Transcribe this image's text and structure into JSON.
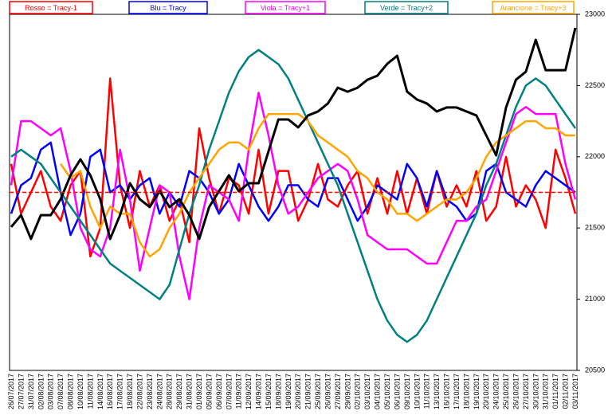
{
  "chart_data": {
    "type": "line",
    "categories": [
      "26/07/2017",
      "27/07/2017",
      "31/07/2017",
      "02/08/2017",
      "03/08/2017",
      "07/08/2017",
      "08/08/2017",
      "10/08/2017",
      "11/08/2017",
      "14/08/2017",
      "16/08/2017",
      "17/08/2017",
      "18/08/2017",
      "22/08/2017",
      "23/08/2017",
      "24/08/2017",
      "28/08/2017",
      "29/08/2017",
      "31/08/2017",
      "01/09/2017",
      "05/09/2017",
      "06/09/2017",
      "07/09/2017",
      "11/09/2017",
      "12/09/2017",
      "14/09/2017",
      "15/09/2017",
      "18/09/2017",
      "19/09/2017",
      "20/09/2017",
      "21/09/2017",
      "25/09/2017",
      "26/09/2017",
      "27/09/2017",
      "29/09/2017",
      "02/10/2017",
      "03/10/2017",
      "04/10/2017",
      "05/10/2017",
      "06/10/2017",
      "09/10/2017",
      "10/10/2017",
      "11/10/2017",
      "13/10/2017",
      "16/10/2017",
      "17/10/2017",
      "18/10/2017",
      "19/10/2017",
      "20/10/2017",
      "24/10/2017",
      "25/10/2017",
      "26/10/2017",
      "27/10/2017",
      "30/10/2017",
      "31/10/2017",
      "01/11/2017",
      "02/11/2017",
      "03/11/2017"
    ],
    "series": [
      {
        "name": "Rosso = Tracy-1",
        "color": "#ff0000",
        "values": [
          21950,
          21600,
          21750,
          21900,
          21650,
          21550,
          21800,
          21900,
          21300,
          21500,
          22550,
          21800,
          21500,
          21900,
          21650,
          21800,
          21550,
          21700,
          21400,
          22200,
          21850,
          21600,
          21850,
          21800,
          21600,
          22050,
          21600,
          21900,
          21900,
          21550,
          21700,
          21950,
          21700,
          21650,
          21800,
          21900,
          21600,
          21850,
          21600,
          21900,
          21600,
          21850,
          21600,
          21900,
          21650,
          21800,
          21650,
          21900,
          21550,
          21650,
          22000,
          21650,
          21800,
          21700,
          21500,
          22050,
          21850,
          21600
        ]
      },
      {
        "name": "Blu = Tracy",
        "color": "#0000ff",
        "values": [
          21600,
          21800,
          21850,
          22050,
          22100,
          21750,
          21450,
          21600,
          22000,
          22050,
          21750,
          21800,
          21700,
          21800,
          21850,
          21600,
          21750,
          21650,
          21900,
          21850,
          21750,
          21600,
          21700,
          21950,
          21800,
          21650,
          21550,
          21650,
          21800,
          21800,
          21700,
          21650,
          21850,
          21850,
          21700,
          21550,
          21650,
          21800,
          21750,
          21700,
          21950,
          21850,
          21650,
          21900,
          21700,
          21650,
          21550,
          21600,
          21900,
          21950,
          21750,
          21700,
          21650,
          21800,
          21900,
          21850,
          21800,
          21750
        ]
      },
      {
        "name": "Viola = Tracy+1",
        "color": "#ff00ff",
        "values": [
          21800,
          22250,
          22250,
          22200,
          22150,
          22200,
          21900,
          21500,
          21350,
          21300,
          21500,
          22050,
          21700,
          21200,
          21500,
          21800,
          21750,
          21300,
          21000,
          21500,
          21800,
          21750,
          21700,
          21550,
          22050,
          22450,
          22150,
          21800,
          21600,
          21650,
          21750,
          21850,
          21900,
          21950,
          21900,
          21700,
          21450,
          21400,
          21350,
          21350,
          21350,
          21300,
          21250,
          21250,
          21400,
          21550,
          21550,
          21650,
          21700,
          21900,
          22100,
          22300,
          22350,
          22300,
          22300,
          22300,
          21950,
          21700
        ]
      },
      {
        "name": "Verde = Tracy+2",
        "color": "#008080",
        "values": [
          22000,
          22050,
          22000,
          21950,
          21850,
          21750,
          21650,
          21550,
          21450,
          21350,
          21250,
          21200,
          21150,
          21100,
          21050,
          21000,
          21100,
          21350,
          21600,
          21800,
          22050,
          22250,
          22450,
          22600,
          22700,
          22750,
          22700,
          22650,
          22550,
          22400,
          22250,
          22100,
          21950,
          21800,
          21600,
          21400,
          21200,
          21000,
          20850,
          20750,
          20700,
          20750,
          20850,
          21000,
          21150,
          21300,
          21450,
          21600,
          21800,
          21950,
          22150,
          22350,
          22500,
          22550,
          22500,
          22400,
          22300,
          22200
        ]
      },
      {
        "name": "Arancione = Tracy+3",
        "color": "#ffa500",
        "values": [
          null,
          null,
          null,
          null,
          null,
          21950,
          21850,
          21900,
          21650,
          21500,
          21650,
          21600,
          21600,
          21400,
          21300,
          21350,
          21500,
          21600,
          21750,
          21850,
          21950,
          22050,
          22100,
          22100,
          22050,
          22200,
          22300,
          22300,
          22300,
          22300,
          22250,
          22150,
          22100,
          22050,
          22000,
          21900,
          21850,
          21750,
          21700,
          21600,
          21600,
          21550,
          21600,
          21650,
          21700,
          21700,
          21750,
          21850,
          22000,
          22100,
          22150,
          22200,
          22250,
          22250,
          22200,
          22200,
          22150,
          22150
        ]
      },
      {
        "color": "#000000",
        "values": [
          21507,
          21590,
          21423,
          21590,
          21590,
          21702,
          21870,
          21982,
          21870,
          21702,
          21423,
          21590,
          21814,
          21702,
          21647,
          21758,
          21647,
          21702,
          21590,
          21423,
          21647,
          21758,
          21870,
          21758,
          21814,
          21814,
          22038,
          22262,
          22262,
          22206,
          22290,
          22318,
          22374,
          22485,
          22457,
          22485,
          22541,
          22569,
          22653,
          22709,
          22457,
          22402,
          22374,
          22318,
          22346,
          22346,
          22318,
          22290,
          22150,
          22010,
          22346,
          22541,
          22597,
          22821,
          22608,
          22608,
          22608,
          22905
        ]
      }
    ],
    "hline": {
      "value": 21750,
      "color": "#ff0000"
    },
    "ylim": [
      20500,
      23000
    ],
    "yticks": [
      20500,
      21000,
      21500,
      22000,
      22500,
      23000
    ]
  }
}
